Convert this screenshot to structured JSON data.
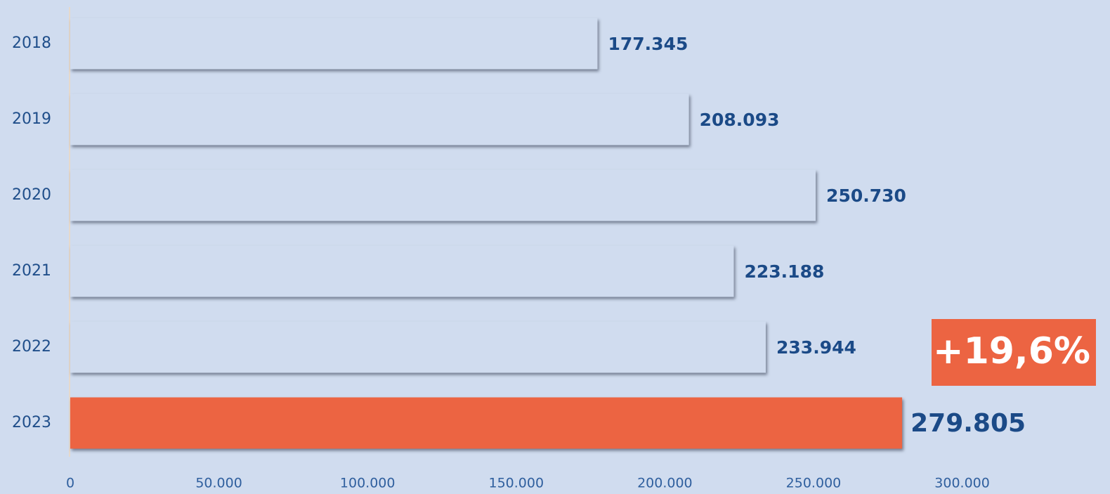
{
  "chart_data": {
    "type": "bar",
    "orientation": "horizontal",
    "categories": [
      "2018",
      "2019",
      "2020",
      "2021",
      "2022",
      "2023"
    ],
    "values": [
      177345,
      208093,
      250730,
      223188,
      233944,
      279805
    ],
    "value_labels": [
      "177.345",
      "208.093",
      "250.730",
      "223.188",
      "233.944",
      "279.805"
    ],
    "colors": [
      "#d0dcef",
      "#d0dcef",
      "#d0dcef",
      "#d0dcef",
      "#d0dcef",
      "#ec6442"
    ],
    "xlim": [
      0,
      345000
    ],
    "xticks": [
      0,
      {
        "value": 50000,
        "label": "50.000"
      },
      {
        "value": 100000,
        "label": "100.000"
      },
      {
        "value": 150000,
        "label": "150.000"
      },
      {
        "value": 200000,
        "label": "200.000"
      },
      {
        "value": 250000,
        "label": "250.000"
      },
      {
        "value": 300000,
        "label": "300.000"
      }
    ],
    "grid": false,
    "annotation": "+19,6%"
  }
}
